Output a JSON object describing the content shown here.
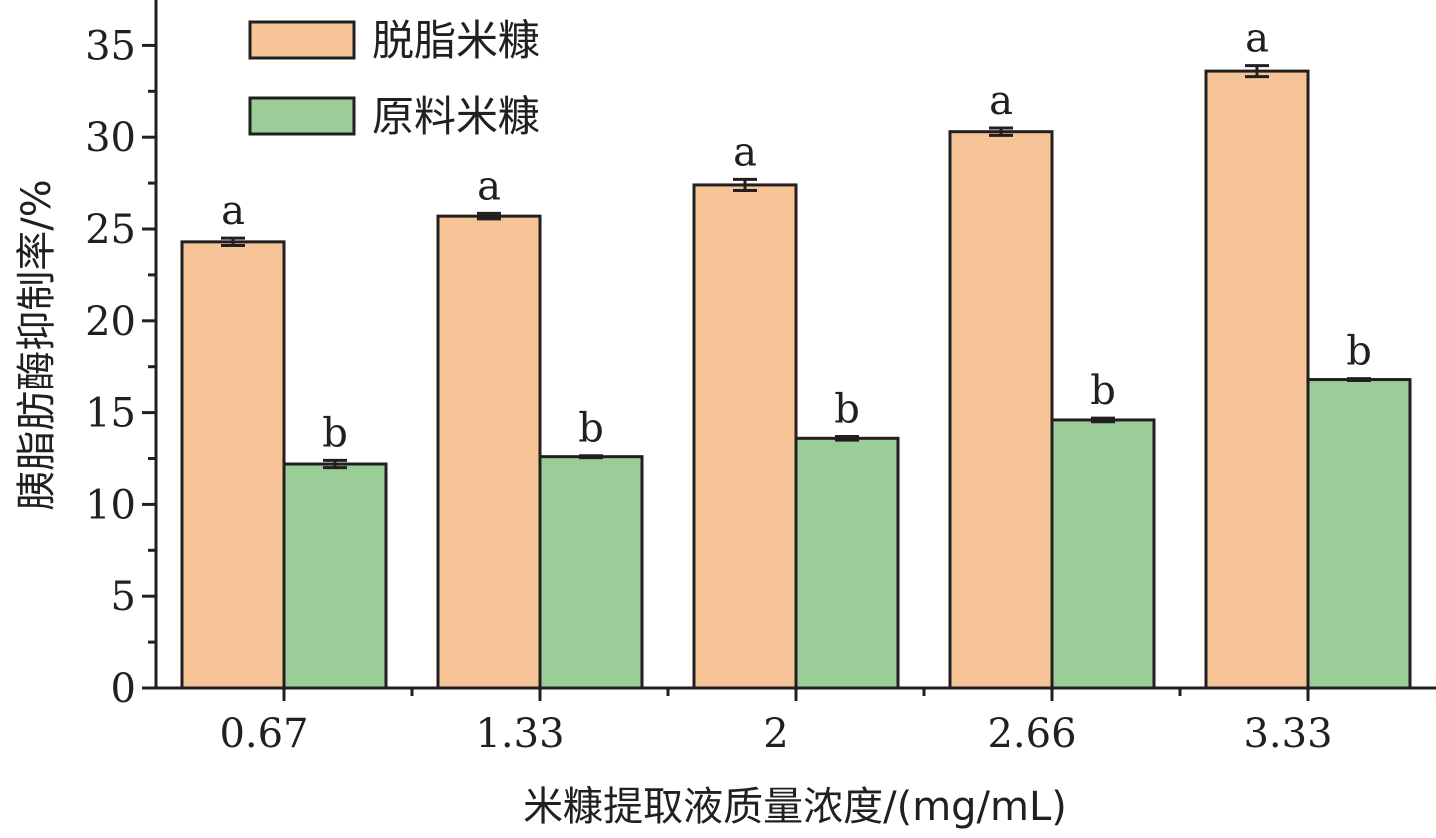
{
  "chart_data": {
    "type": "bar",
    "xlabel": "米糠提取液质量浓度/(mg/mL)",
    "ylabel": "胰脂肪酶抑制率/%",
    "ylim": [
      0,
      37
    ],
    "yticks": [
      0,
      5,
      10,
      15,
      20,
      25,
      30,
      35
    ],
    "categories": [
      "0.67",
      "1.33",
      "2",
      "2.66",
      "3.33"
    ],
    "legend_position": "top-left",
    "grid": false,
    "series": [
      {
        "name": "脱脂米糠",
        "color": "#f7c497",
        "values": [
          24.3,
          25.7,
          27.4,
          30.3,
          33.6
        ],
        "errors": [
          0.2,
          0.15,
          0.3,
          0.2,
          0.3
        ],
        "labels": [
          "a",
          "a",
          "a",
          "a",
          "a"
        ]
      },
      {
        "name": "原料米糠",
        "color": "#9acd97",
        "values": [
          12.2,
          12.6,
          13.6,
          14.6,
          16.8
        ],
        "errors": [
          0.2,
          0.05,
          0.1,
          0.1,
          0.05
        ],
        "labels": [
          "b",
          "b",
          "b",
          "b",
          "b"
        ]
      }
    ]
  }
}
